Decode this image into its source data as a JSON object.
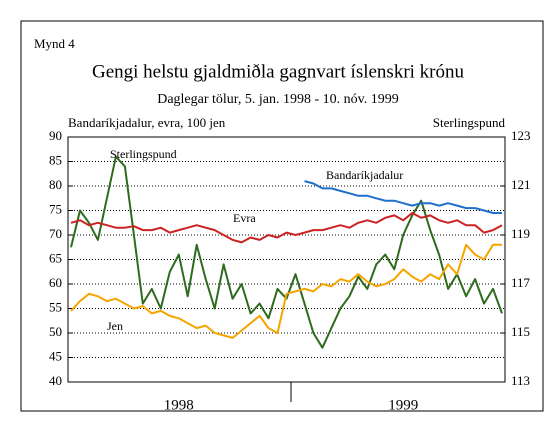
{
  "chart_data": {
    "type": "line",
    "figure_label": "Mynd 4",
    "title": "Gengi helstu gjaldmiðla gagnvart íslenskri krónu",
    "subtitle": "Daglegar tölur, 5. jan. 1998 - 10. nóv. 1999",
    "ylabel": "Bandaríkjadalur, evra, 100 jen",
    "y2label": "Sterlingspund",
    "categories": [
      null,
      null,
      null,
      null,
      null,
      null,
      null,
      null,
      null,
      null,
      null,
      null,
      "1998",
      null,
      null,
      null,
      null,
      null,
      null,
      null,
      null,
      null,
      null,
      null,
      null,
      null,
      null,
      null,
      null,
      null,
      null,
      null,
      null,
      null,
      null,
      null,
      null,
      "1999",
      null,
      null,
      null,
      null,
      null,
      null,
      null,
      null,
      null,
      null,
      null
    ],
    "ylim": [
      40,
      90
    ],
    "yticks": [
      40,
      45,
      50,
      55,
      60,
      65,
      70,
      75,
      80,
      85,
      90
    ],
    "y2lim": [
      113,
      123
    ],
    "y2ticks": [
      113,
      115,
      117,
      119,
      121,
      123
    ],
    "grid": true,
    "series": [
      {
        "name": "Sterlingspund",
        "color": "#2e6b1e",
        "axis": "y2",
        "values": [
          118.5,
          120.0,
          119.5,
          118.8,
          120.5,
          122.2,
          121.8,
          119.0,
          116.2,
          116.8,
          116.0,
          117.5,
          118.2,
          116.5,
          118.6,
          117.2,
          116.0,
          117.8,
          116.4,
          117.0,
          115.8,
          116.2,
          115.6,
          116.8,
          116.4,
          117.4,
          116.2,
          115.0,
          114.4,
          115.2,
          116.0,
          116.5,
          117.3,
          116.8,
          117.8,
          118.2,
          117.6,
          119.0,
          119.8,
          120.4,
          119.2,
          118.2,
          116.8,
          117.4,
          116.5,
          117.2,
          116.2,
          116.8,
          115.8
        ]
      },
      {
        "name": "Bandaríkjadalur",
        "color": "#cc2222",
        "values": [
          72.5,
          73,
          72,
          72.5,
          72,
          71.5,
          71.5,
          71.8,
          71,
          71,
          71.5,
          70.5,
          71,
          71.5,
          72,
          71.5,
          71,
          70,
          69,
          68.5,
          69.5,
          69,
          70,
          69.5,
          70.5,
          70,
          70.5,
          71,
          71,
          71.5,
          72,
          71.5,
          72.5,
          73,
          72.5,
          73.5,
          74,
          73,
          74.5,
          73.5,
          74,
          73,
          72.5,
          73,
          72,
          72,
          70.5,
          71,
          72
        ]
      },
      {
        "name": "Evra",
        "color": "#1f6fcc",
        "values": [
          null,
          null,
          null,
          null,
          null,
          null,
          null,
          null,
          null,
          null,
          null,
          null,
          null,
          null,
          null,
          null,
          null,
          null,
          null,
          null,
          null,
          null,
          null,
          null,
          null,
          null,
          81,
          80.5,
          79.5,
          79.5,
          79,
          78.5,
          78,
          78,
          77.5,
          77,
          77,
          76.5,
          76,
          76.5,
          76.5,
          76,
          76.5,
          76,
          75.5,
          75.5,
          75,
          74.5,
          74.5
        ]
      },
      {
        "name": "Jen",
        "color": "#f5a500",
        "values": [
          54.5,
          56.5,
          58,
          57.5,
          56.5,
          57,
          56,
          55,
          55.5,
          54,
          54.5,
          53.5,
          53,
          52,
          51,
          51.5,
          50,
          49.5,
          49,
          50.5,
          52,
          53.5,
          51,
          50,
          58,
          58.5,
          59,
          58.5,
          60,
          59.5,
          61,
          60.5,
          62,
          60.5,
          59.5,
          60,
          61,
          63,
          61.5,
          60.5,
          62,
          61,
          64,
          62,
          68,
          66,
          65,
          68,
          68
        ]
      }
    ]
  }
}
